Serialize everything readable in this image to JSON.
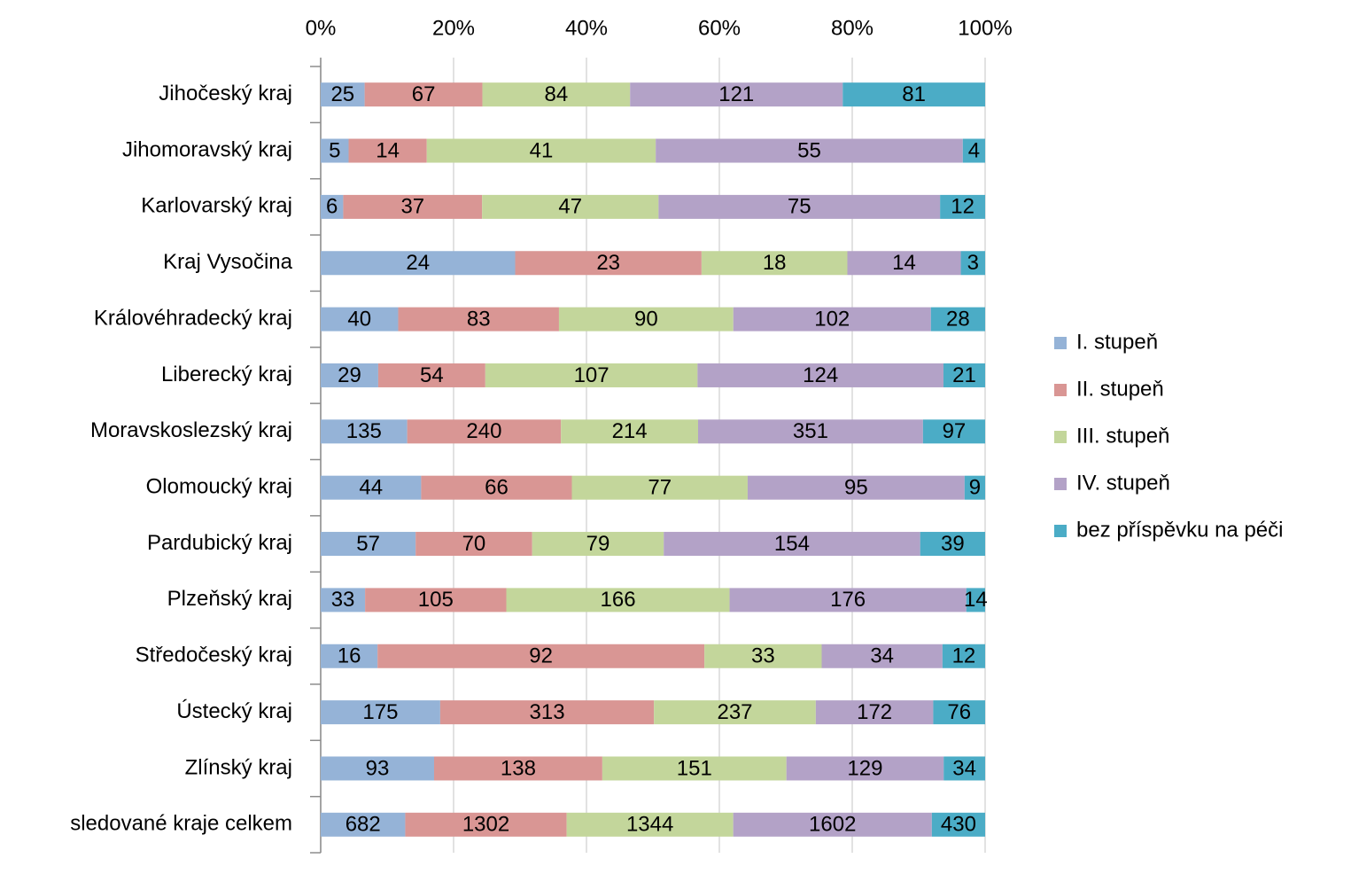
{
  "chart_data": {
    "type": "bar",
    "orientation": "horizontal",
    "stacked": "percent",
    "categories": [
      "Jihočeský kraj",
      "Jihomoravský kraj",
      "Karlovarský kraj",
      "Kraj Vysočina",
      "Královéhradecký kraj",
      "Liberecký kraj",
      "Moravskoslezský kraj",
      "Olomoucký kraj",
      "Pardubický kraj",
      "Plzeňský kraj",
      "Středočeský kraj",
      "Ústecký kraj",
      "Zlínský kraj",
      "sledované kraje celkem"
    ],
    "series": [
      {
        "name": "I. stupeň",
        "color": "#95b3d7",
        "values": [
          25,
          5,
          6,
          24,
          40,
          29,
          135,
          44,
          57,
          33,
          16,
          175,
          93,
          682
        ]
      },
      {
        "name": "II. stupeň",
        "color": "#d99694",
        "values": [
          67,
          14,
          37,
          23,
          83,
          54,
          240,
          66,
          70,
          105,
          92,
          313,
          138,
          1302
        ]
      },
      {
        "name": "III. stupeň",
        "color": "#c3d69b",
        "values": [
          84,
          41,
          47,
          18,
          90,
          107,
          214,
          77,
          79,
          166,
          33,
          237,
          151,
          1344
        ]
      },
      {
        "name": "IV. stupeň",
        "color": "#b3a2c7",
        "values": [
          121,
          55,
          75,
          14,
          102,
          124,
          351,
          95,
          154,
          176,
          34,
          172,
          129,
          1602
        ]
      },
      {
        "name": "bez příspěvku na péči",
        "color": "#4bacc6",
        "values": [
          81,
          4,
          12,
          3,
          28,
          21,
          97,
          9,
          39,
          14,
          12,
          76,
          34,
          430
        ]
      }
    ],
    "xlim": [
      0,
      100
    ],
    "xticks": [
      {
        "value": 0,
        "label": "0%"
      },
      {
        "value": 20,
        "label": "20%"
      },
      {
        "value": 40,
        "label": "40%"
      },
      {
        "value": 60,
        "label": "60%"
      },
      {
        "value": 80,
        "label": "80%"
      },
      {
        "value": 100,
        "label": "100%"
      }
    ],
    "grid": true,
    "legend": "right"
  }
}
